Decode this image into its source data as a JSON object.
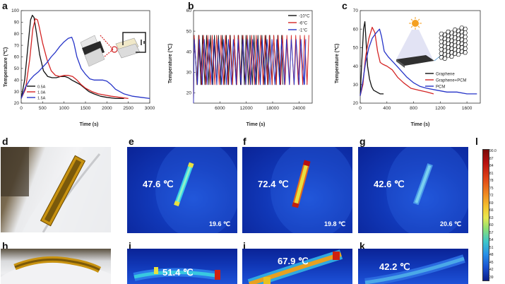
{
  "panels": {
    "a": {
      "letter": "a"
    },
    "b": {
      "letter": "b"
    },
    "c": {
      "letter": "c"
    },
    "d": {
      "letter": "d"
    },
    "e": {
      "letter": "e"
    },
    "f": {
      "letter": "f"
    },
    "g": {
      "letter": "g"
    },
    "h": {
      "letter": "h"
    },
    "i": {
      "letter": "i"
    },
    "j": {
      "letter": "j"
    },
    "k": {
      "letter": "k"
    },
    "l": {
      "letter": "l"
    }
  },
  "thermal": {
    "e": {
      "max_temp": "47.6 ℃",
      "ambient": "19.6 ℃"
    },
    "f": {
      "max_temp": "72.4 ℃",
      "ambient": "19.8 ℃"
    },
    "g": {
      "max_temp": "42.6 ℃",
      "ambient": "20.6 ℃"
    },
    "i": {
      "max_temp": "51.4 ℃"
    },
    "j": {
      "max_temp": "67.9 ℃"
    },
    "k": {
      "max_temp": "42.2 ℃"
    }
  },
  "colorbar": {
    "ticks": [
      "90.0",
      "87",
      "84",
      "81",
      "78",
      "75",
      "72",
      "69",
      "66",
      "63",
      "60",
      "57",
      "54",
      "51",
      "48",
      "45",
      "42",
      "39"
    ]
  },
  "colors": {
    "black_series": "#111111",
    "red_series": "#d42424",
    "blue_series": "#2634c8"
  },
  "chart_data": [
    {
      "type": "line",
      "panel": "a",
      "title": "",
      "xlabel": "Time (s)",
      "ylabel": "Temperature (℃)",
      "xlim": [
        0,
        3000
      ],
      "ylim": [
        20,
        100
      ],
      "xticks": [
        "0",
        "500",
        "1000",
        "1500",
        "2000",
        "2500",
        "3000"
      ],
      "yticks": [
        "20",
        "30",
        "40",
        "50",
        "60",
        "70",
        "80",
        "90",
        "100"
      ],
      "legend_position": "bottom-left",
      "series": [
        {
          "name": "0.5A",
          "color": "#111111",
          "x": [
            0,
            80,
            160,
            220,
            260,
            300,
            360,
            430,
            520,
            620,
            720,
            820,
            920,
            1020,
            1100,
            1180,
            1280,
            1380,
            1480,
            1580,
            1700,
            1850,
            2000,
            2200,
            2400
          ],
          "y": [
            24,
            40,
            70,
            92,
            96,
            94,
            80,
            62,
            48,
            43,
            42,
            42,
            43,
            43,
            42,
            40,
            38,
            36,
            33,
            30,
            28,
            26,
            25,
            24,
            24
          ]
        },
        {
          "name": "1.0A",
          "color": "#d42424",
          "x": [
            0,
            100,
            200,
            270,
            330,
            380,
            420,
            500,
            600,
            700,
            800,
            900,
            1000,
            1100,
            1200,
            1300,
            1400,
            1500,
            1650,
            1800,
            1950,
            2100,
            2300,
            2500
          ],
          "y": [
            24,
            32,
            58,
            84,
            93,
            92,
            86,
            72,
            58,
            48,
            44,
            43,
            44,
            44,
            43,
            40,
            36,
            33,
            30,
            28,
            27,
            26,
            25,
            24
          ]
        },
        {
          "name": "1.5A",
          "color": "#2634c8",
          "x": [
            0,
            100,
            200,
            300,
            400,
            500,
            600,
            700,
            800,
            900,
            1000,
            1100,
            1180,
            1230,
            1300,
            1400,
            1500,
            1600,
            1700,
            1800,
            1900,
            2000,
            2100,
            2200,
            2400,
            2600,
            2800,
            3000
          ],
          "y": [
            24,
            34,
            40,
            44,
            47,
            51,
            55,
            60,
            64,
            69,
            73,
            76,
            77,
            72,
            60,
            50,
            45,
            41,
            40,
            40,
            40,
            39,
            36,
            32,
            28,
            26,
            25,
            24
          ]
        }
      ]
    },
    {
      "type": "line",
      "panel": "b",
      "title": "",
      "xlabel": "Time (s)",
      "ylabel": "Temperature (℃)",
      "xlim": [
        0,
        27000
      ],
      "ylim": [
        15,
        60
      ],
      "xticks": [
        "6000",
        "12000",
        "18000",
        "24000"
      ],
      "yticks": [
        "20",
        "30",
        "40",
        "50",
        "60"
      ],
      "legend_position": "top-right",
      "series": [
        {
          "name": "-10°C",
          "color": "#111111",
          "period_s": 900,
          "min": 24,
          "max": 48,
          "end_s": 20000
        },
        {
          "name": "-6°C",
          "color": "#d42424",
          "period_s": 1000,
          "min": 24,
          "max": 48,
          "end_s": 25500
        },
        {
          "name": "-1°C",
          "color": "#2634c8",
          "period_s": 1100,
          "min": 24,
          "max": 46,
          "end_s": 25000
        }
      ]
    },
    {
      "type": "line",
      "panel": "c",
      "title": "",
      "xlabel": "Time (s)",
      "ylabel": "Temperature (℃)",
      "xlim": [
        0,
        1800
      ],
      "ylim": [
        20,
        70
      ],
      "xticks": [
        "0",
        "400",
        "800",
        "1200",
        "1600"
      ],
      "yticks": [
        "20",
        "30",
        "40",
        "50",
        "60",
        "70"
      ],
      "legend_position": "bottom-right",
      "series": [
        {
          "name": "Graphene",
          "color": "#111111",
          "x": [
            0,
            20,
            50,
            70,
            90,
            110,
            140,
            170,
            200,
            250,
            300,
            350
          ],
          "y": [
            24,
            40,
            60,
            64,
            52,
            40,
            33,
            29,
            27,
            26,
            25,
            25
          ]
        },
        {
          "name": "Graphene+PCM",
          "color": "#d42424",
          "x": [
            0,
            40,
            80,
            130,
            180,
            220,
            260,
            300,
            340,
            400,
            480,
            560,
            650,
            760,
            880,
            1000,
            1100
          ],
          "y": [
            24,
            30,
            45,
            55,
            61,
            58,
            48,
            42,
            41,
            40,
            38,
            34,
            31,
            28,
            27,
            26,
            25
          ]
        },
        {
          "name": "PCM",
          "color": "#2634c8",
          "x": [
            0,
            40,
            80,
            130,
            180,
            240,
            290,
            320,
            360,
            420,
            500,
            600,
            700,
            800,
            900,
            1000,
            1150,
            1300,
            1450,
            1600,
            1750
          ],
          "y": [
            24,
            32,
            42,
            50,
            55,
            58,
            60,
            56,
            48,
            45,
            42,
            38,
            34,
            31,
            29,
            28,
            27,
            26,
            26,
            25,
            25
          ]
        }
      ]
    }
  ]
}
